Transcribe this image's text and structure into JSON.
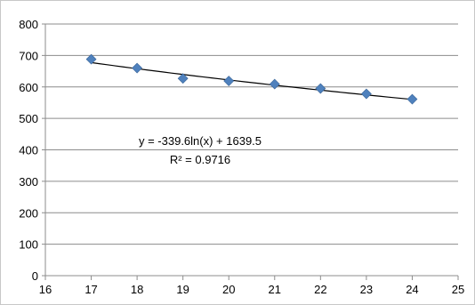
{
  "chart_data": {
    "type": "scatter",
    "x": [
      17,
      18,
      19,
      20,
      21,
      22,
      23,
      24
    ],
    "y": [
      688,
      660,
      627,
      619,
      609,
      595,
      578,
      561
    ],
    "xlim": [
      16,
      25
    ],
    "ylim": [
      0,
      800
    ],
    "x_ticks": [
      16,
      17,
      18,
      19,
      20,
      21,
      22,
      23,
      24,
      25
    ],
    "y_ticks": [
      0,
      100,
      200,
      300,
      400,
      500,
      600,
      700,
      800
    ],
    "grid": "horizontal",
    "legend": "none",
    "marker": "diamond",
    "marker_color": "#4f81bd",
    "trendline": {
      "type": "logarithmic",
      "a": -339.6,
      "b": 1639.5,
      "x_range": [
        17,
        24
      ],
      "color": "#000000",
      "equation": "y = -339.6ln(x) + 1639.5",
      "r_squared": "R² = 0.9716"
    }
  }
}
